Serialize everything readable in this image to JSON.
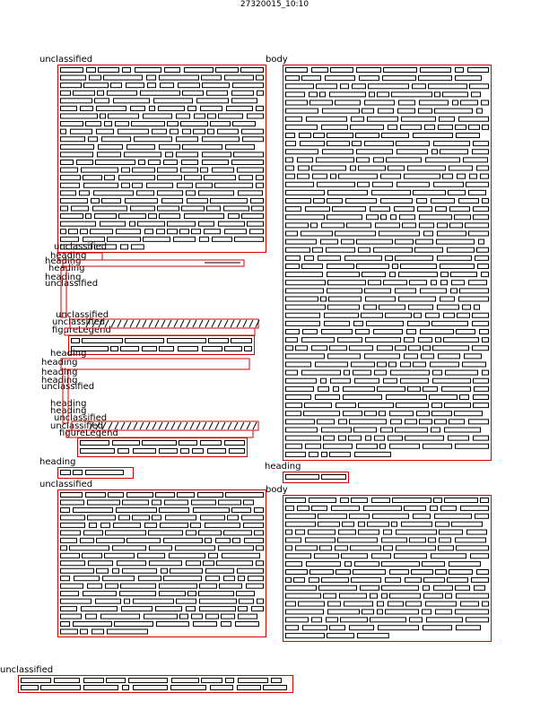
{
  "page_title": "27320015_10:10",
  "regions": {
    "unclassified_top": "unclassified",
    "body_right": "body",
    "unclassified_small": "unclassified",
    "heading_a": "heading",
    "heading_b": "heading",
    "heading_c": "heading",
    "heading_d": "heading",
    "unclassified_mid": "unclassified",
    "unclassified_fig1": "unclassified",
    "unclassified_fig1b": "unclassified",
    "figure_legend_1": "figureLegend",
    "heading_e": "heading",
    "heading_f": "heading",
    "heading_g": "heading",
    "unclassified_mid2": "unclassified",
    "heading_h": "heading",
    "heading_i": "heading",
    "unclassified_fig2": "unclassified",
    "unclassified_fig2b": "unclassified",
    "figure_legend_2": "figureLegend",
    "heading_left": "heading",
    "heading_right": "heading",
    "unclassified_lower": "unclassified",
    "body_lower": "body",
    "unclassified_bottom": "unclassified"
  }
}
